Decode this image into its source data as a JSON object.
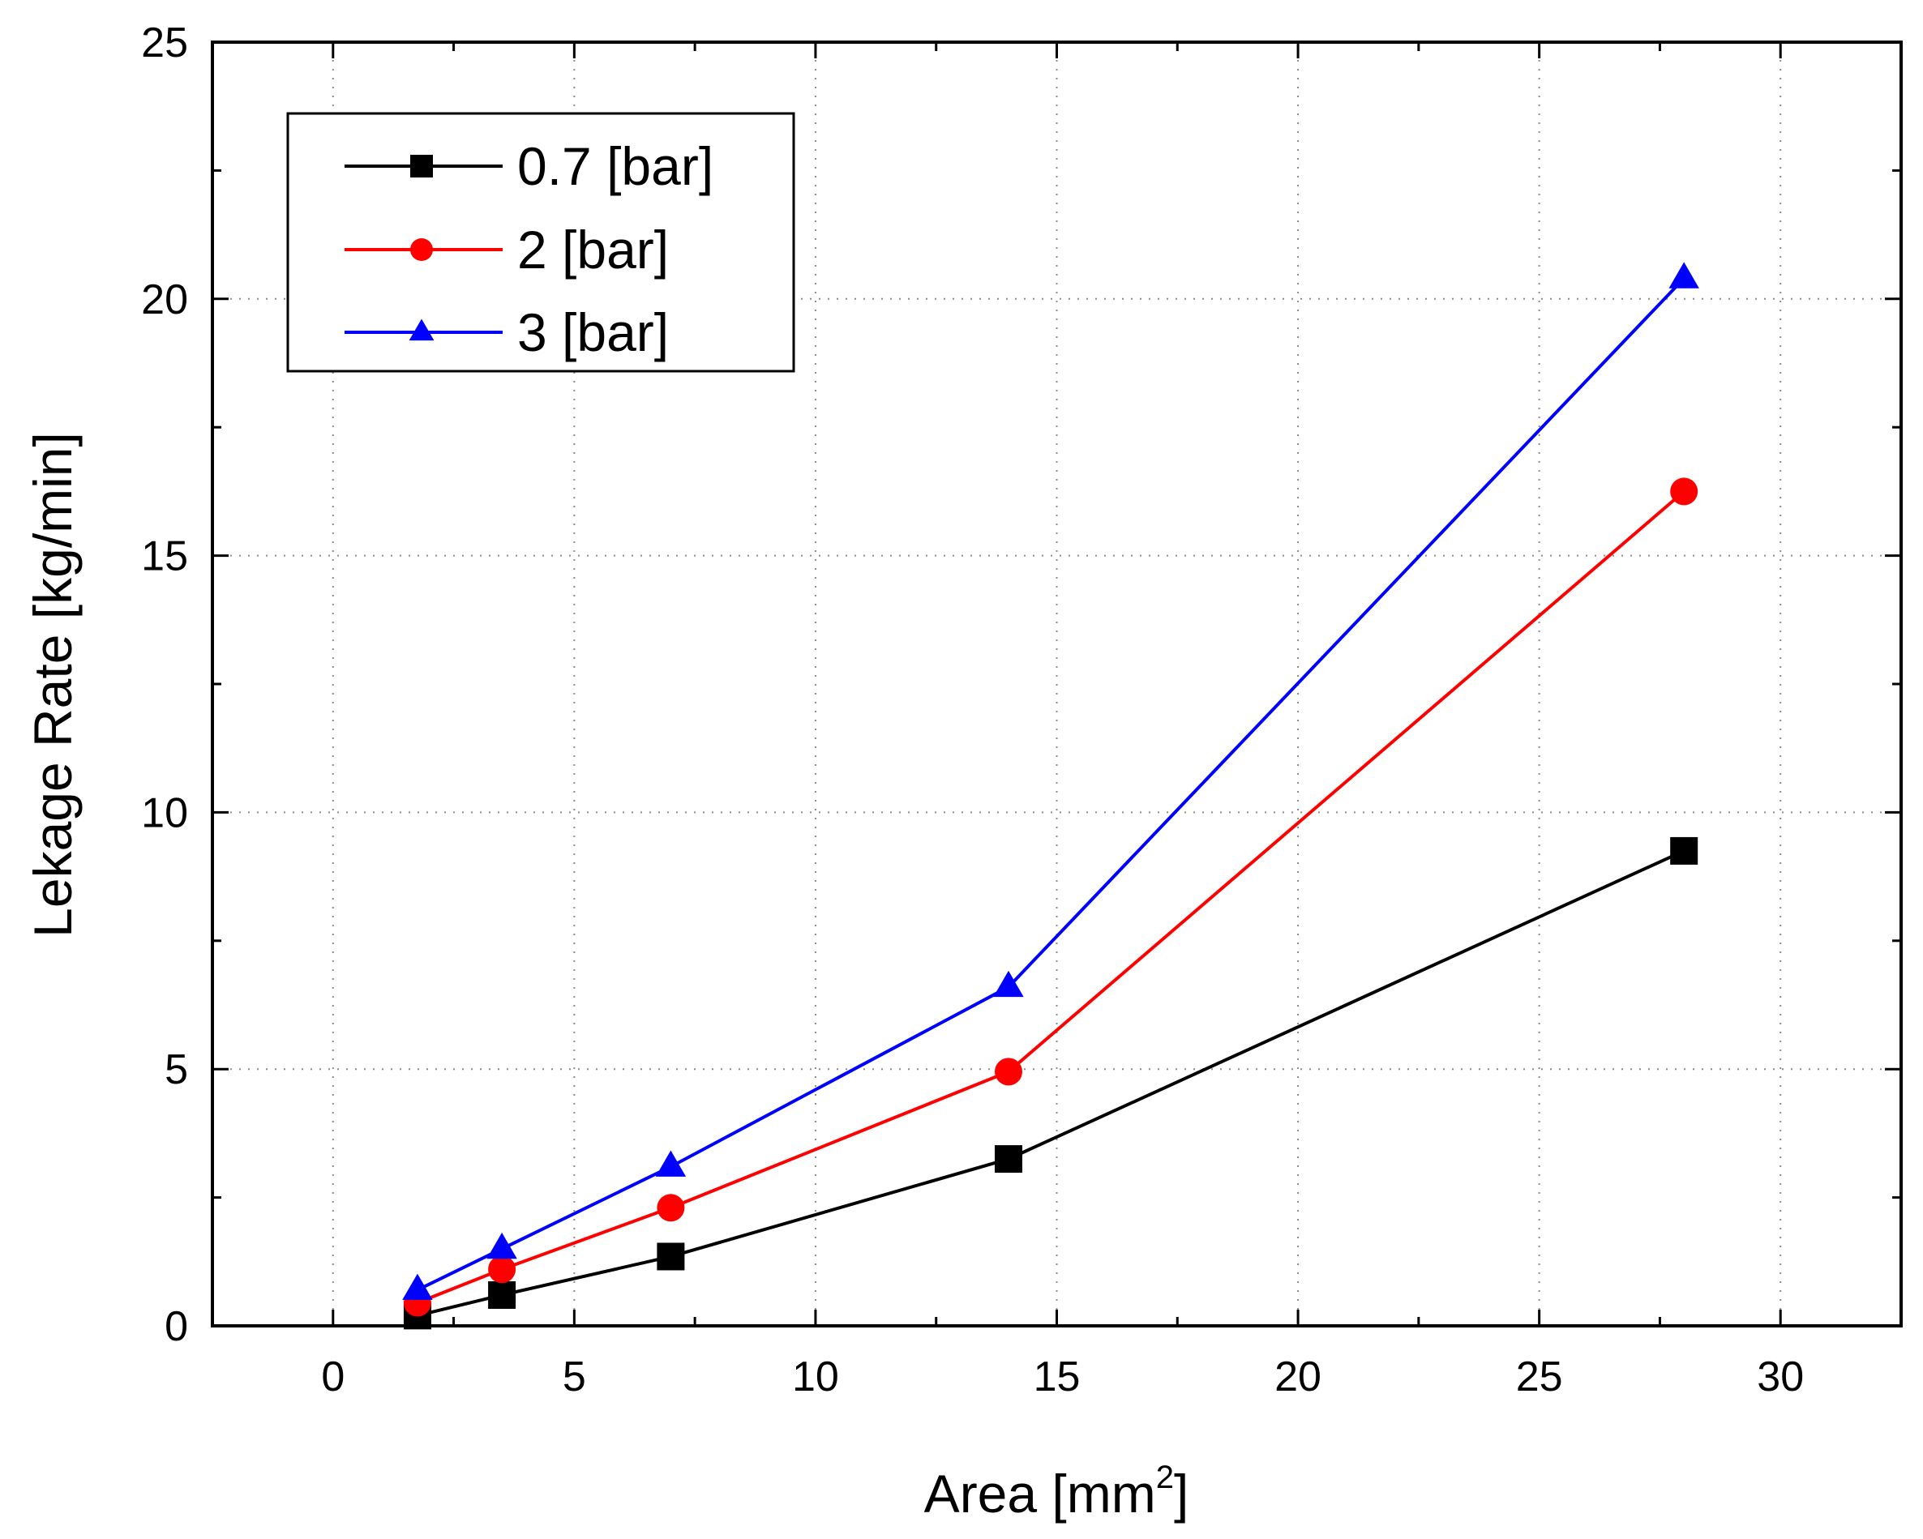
{
  "chart_data": {
    "type": "line",
    "title": "",
    "xlabel": "Area [mm",
    "xlabel_superscript": "2",
    "xlabel_suffix": "]",
    "ylabel": "Lekage Rate [kg/min]",
    "xlim": [
      -2.5,
      32.5
    ],
    "ylim": [
      0,
      25
    ],
    "xticks": [
      0,
      5,
      10,
      15,
      20,
      25,
      30
    ],
    "yticks": [
      0,
      5,
      10,
      15,
      20,
      25
    ],
    "grid": true,
    "legend_position": "top-left",
    "x": [
      1.75,
      3.5,
      7,
      14,
      28
    ],
    "series": [
      {
        "name": "0.7 [bar]",
        "color": "#000000",
        "marker": "square",
        "values": [
          0.2,
          0.6,
          1.35,
          3.25,
          9.25
        ]
      },
      {
        "name": "2 [bar]",
        "color": "#ff0000",
        "marker": "circle",
        "values": [
          0.45,
          1.1,
          2.3,
          4.95,
          16.25
        ]
      },
      {
        "name": "3 [bar]",
        "color": "#0000ff",
        "marker": "triangle",
        "values": [
          0.7,
          1.5,
          3.1,
          6.6,
          20.4
        ]
      }
    ]
  }
}
